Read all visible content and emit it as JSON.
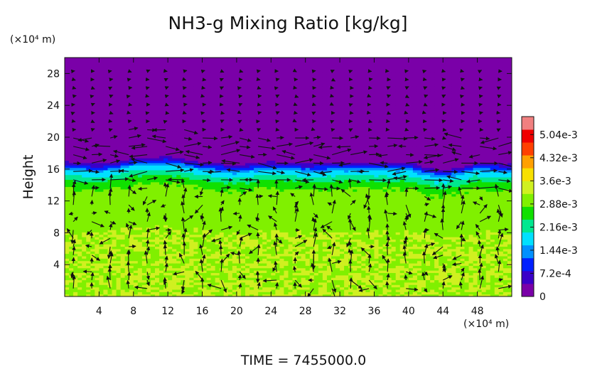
{
  "chart_data": {
    "type": "heatmap",
    "title": "NH3-g Mixing Ratio [kg/kg]",
    "xlabel": "",
    "ylabel": "Height",
    "x_unit": "(×10⁴ m)",
    "y_unit": "(×10⁴ m)",
    "xlim": [
      0,
      52
    ],
    "ylim": [
      0,
      30
    ],
    "x_ticks": [
      4,
      8,
      12,
      16,
      20,
      24,
      28,
      32,
      36,
      40,
      44,
      48
    ],
    "x_tick_labels": [
      "4",
      "8",
      "12",
      "16",
      "20",
      "24",
      "28",
      "32",
      "36",
      "40",
      "44",
      "48"
    ],
    "y_ticks": [
      4,
      8,
      12,
      16,
      20,
      24,
      28
    ],
    "y_tick_labels": [
      "4",
      "8",
      "12",
      "16",
      "20",
      "24",
      "28"
    ],
    "colorbar": {
      "min": 0,
      "max": 0.0056,
      "ticks": [
        0,
        0.00072,
        0.00144,
        0.00216,
        0.00288,
        0.0036,
        0.00432,
        0.00504
      ],
      "tick_labels": [
        "0",
        "7.2e-4",
        "1.44e-3",
        "2.16e-3",
        "2.88e-3",
        "3.6e-3",
        "4.32e-3",
        "5.04e-3"
      ],
      "colors": [
        "#7a00a8",
        "#3a00c8",
        "#0020ff",
        "#0090ff",
        "#00e0ff",
        "#00e890",
        "#10e000",
        "#80f000",
        "#d0f020",
        "#f8e000",
        "#ffa000",
        "#ff4000",
        "#f00000",
        "#f08080"
      ]
    },
    "field_profile": {
      "height": [
        0,
        8,
        10,
        12,
        13,
        14,
        15,
        15.8,
        16.2,
        16.8,
        17.5,
        30
      ],
      "value": [
        0.0032,
        0.0032,
        0.0031,
        0.003,
        0.0029,
        0.0027,
        0.0021,
        0.0016,
        0.0011,
        0.0004,
        0.0001,
        0.0001
      ]
    },
    "field_tropopause_x": [
      0,
      4,
      8,
      12,
      16,
      20,
      24,
      28,
      32,
      36,
      40,
      44,
      48,
      52
    ],
    "field_tropopause_height": [
      16.8,
      16.4,
      17.2,
      17.4,
      16.7,
      16.3,
      16.8,
      16.5,
      16.6,
      16.7,
      16.6,
      15.6,
      16.6,
      16.4
    ],
    "series": [],
    "grid": false,
    "legend": "colorbar-right"
  },
  "footer": {
    "time_label": "TIME  =  7455000.0"
  }
}
